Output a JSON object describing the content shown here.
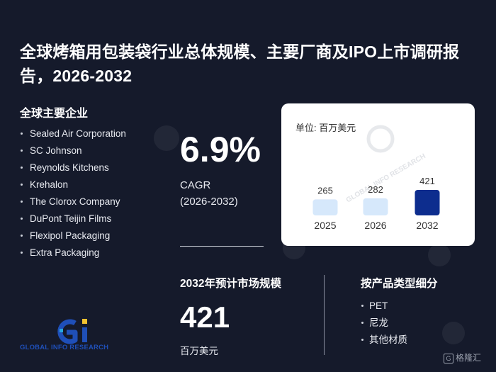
{
  "title": "全球烤箱用包装袋行业总体规模、主要厂商及IPO上市调研报告，2026-2032",
  "companies": {
    "heading": "全球主要企业",
    "items": [
      "Sealed Air Corporation",
      "SC Johnson",
      "Reynolds Kitchens",
      "Krehalon",
      "The Clorox Company",
      "DuPont Teijin Films",
      "Flexipol Packaging",
      "Extra Packaging"
    ]
  },
  "cagr": {
    "value": "6.9%",
    "label": "CAGR",
    "period": "(2026-2032)"
  },
  "chart_data": {
    "type": "bar",
    "unit_label": "单位: 百万美元",
    "categories": [
      "2025",
      "2026",
      "2032"
    ],
    "values": [
      265,
      282,
      421
    ],
    "highlight_index": 2,
    "colors": {
      "normal": "#d6e8fb",
      "highlight": "#0d2d8e"
    }
  },
  "market": {
    "heading": "2032年预计市场规模",
    "value": "421",
    "unit": "百万美元"
  },
  "segments": {
    "heading": "按产品类型细分",
    "items": [
      "PET",
      "尼龙",
      "其他材质"
    ]
  },
  "logo": {
    "text": "GLOBAL INFO RESEARCH",
    "watermark": "GLOBAL INFO RESEARCH"
  },
  "brand": {
    "icon": "G",
    "text": "格隆汇"
  }
}
